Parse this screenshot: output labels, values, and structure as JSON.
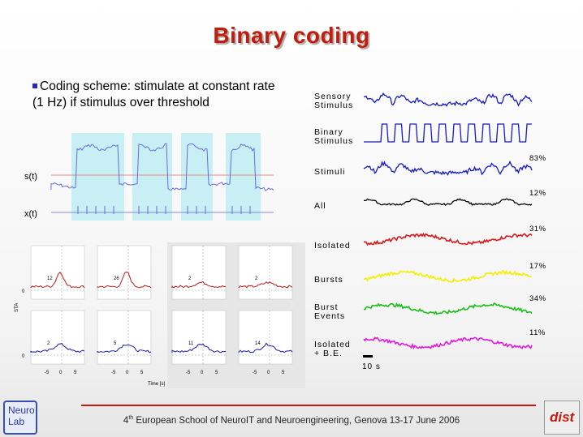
{
  "title": "Binary coding",
  "bullet": {
    "text": "Coding scheme: stimulate at constant rate (1 Hz) if stimulus over threshold"
  },
  "left_plot": {
    "s_label": "s(t)",
    "x_label": "x(t)"
  },
  "sta_grid": {
    "ylabel": "STA",
    "xlabel": "Time [s]",
    "zero_tick": "0",
    "xticks": [
      "-5",
      "0",
      "5"
    ],
    "top_counts": [
      "12",
      "26",
      "2",
      "2"
    ],
    "bottom_counts": [
      "2",
      "5",
      "11",
      "14"
    ],
    "colors": {
      "top": "#c01818",
      "bottom": "#1a1aa8"
    }
  },
  "right_traces": {
    "rows": [
      {
        "label": "Sensory\nStimulus",
        "pct": "",
        "color": "#1818c8"
      },
      {
        "label": "Binary\nStimulus",
        "pct": "",
        "color": "#1818c8"
      },
      {
        "label": "Stimuli",
        "pct": "83%",
        "color": "#1818c8"
      },
      {
        "label": "All",
        "pct": "12%",
        "color": "#000000"
      },
      {
        "label": "Isolated",
        "pct": "31%",
        "color": "#d81818"
      },
      {
        "label": "Bursts",
        "pct": "17%",
        "color": "#f0f000"
      },
      {
        "label": "Burst\nEvents",
        "pct": "34%",
        "color": "#18c018"
      },
      {
        "label": "Isolated\n+ B.E.",
        "pct": "11%",
        "color": "#e018e0"
      }
    ],
    "scale_bar": "10 s"
  },
  "footer": {
    "sup": "th",
    "number": "4",
    "text": " European School of NeuroIT and Neuroengineering, Genova 13-17 June 2006"
  },
  "logos": {
    "neurolab": "Neuro\nLab",
    "dist": "dist"
  }
}
